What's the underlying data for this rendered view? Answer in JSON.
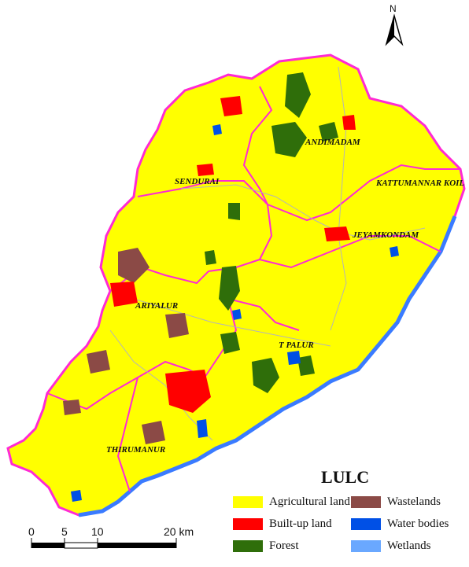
{
  "legend": {
    "title": "LULC",
    "items": [
      {
        "label": "Agricultural land",
        "color": "#ffff00"
      },
      {
        "label": "Wastelands",
        "color": "#8b4a46"
      },
      {
        "label": "Built-up land",
        "color": "#ff0000"
      },
      {
        "label": "Water bodies",
        "color": "#0050e6"
      },
      {
        "label": "Forest",
        "color": "#2f6e0a"
      },
      {
        "label": "Wetlands",
        "color": "#6aa8ff"
      }
    ]
  },
  "places": [
    "ANDIMADAM",
    "SENDURAI",
    "KATTUMANNAR KOIL",
    "JEYAMKONDAM",
    "ARIYALUR",
    "T PALUR",
    "THIRUMANUR"
  ],
  "scale_bar": {
    "ticks": [
      "0",
      "5",
      "10",
      "20 km"
    ]
  },
  "north_arrow": {
    "label": "N"
  },
  "colors": {
    "boundary": "#ff2ad4",
    "river": "#3a7bff",
    "road": "#b5b5b5"
  }
}
